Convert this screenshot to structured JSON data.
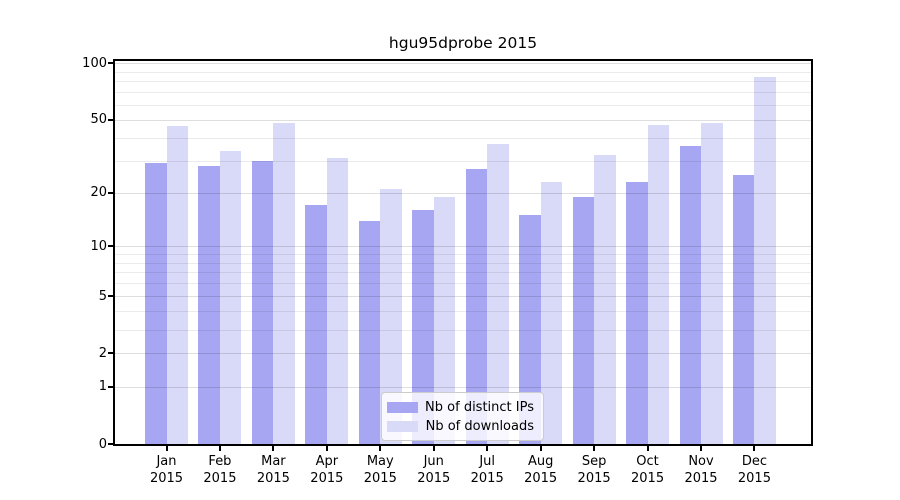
{
  "figure": {
    "title": "hgu95dprobe 2015"
  },
  "chart_data": {
    "type": "bar",
    "title": "hgu95dprobe 2015",
    "scale": "log1p",
    "grid": "on (major + minor, drawn over bars)",
    "legend_position": "lower center",
    "categories": [
      {
        "month": "Jan",
        "year": "2015"
      },
      {
        "month": "Feb",
        "year": "2015"
      },
      {
        "month": "Mar",
        "year": "2015"
      },
      {
        "month": "Apr",
        "year": "2015"
      },
      {
        "month": "May",
        "year": "2015"
      },
      {
        "month": "Jun",
        "year": "2015"
      },
      {
        "month": "Jul",
        "year": "2015"
      },
      {
        "month": "Aug",
        "year": "2015"
      },
      {
        "month": "Sep",
        "year": "2015"
      },
      {
        "month": "Oct",
        "year": "2015"
      },
      {
        "month": "Nov",
        "year": "2015"
      },
      {
        "month": "Dec",
        "year": "2015"
      }
    ],
    "series": [
      {
        "name": "Nb of distinct IPs",
        "key": "distinct-ips",
        "color": "#a6a6f2",
        "values": [
          29,
          28,
          30,
          17,
          14,
          16,
          27,
          15,
          19,
          23,
          36,
          25
        ]
      },
      {
        "name": "Nb of downloads",
        "key": "downloads",
        "color": "#d9d9f8",
        "values": [
          46,
          34,
          48,
          31,
          21,
          19,
          37,
          23,
          32,
          47,
          48,
          84
        ]
      }
    ],
    "yticks": [
      0,
      1,
      2,
      5,
      10,
      20,
      50,
      100
    ],
    "minor_gridlines": [
      3,
      4,
      6,
      7,
      8,
      9,
      30,
      40,
      60,
      70,
      80,
      90
    ],
    "ylim": [
      0,
      103
    ],
    "xlabel": "",
    "ylabel": ""
  },
  "legend": {
    "items": [
      {
        "label": "Nb of distinct IPs"
      },
      {
        "label": "Nb of downloads"
      }
    ]
  },
  "colors": {
    "ips_bar": "#a6a6f2",
    "downloads_bar": "#d9d9f8",
    "spine": "#000000",
    "legend_border": "#cccccc"
  }
}
